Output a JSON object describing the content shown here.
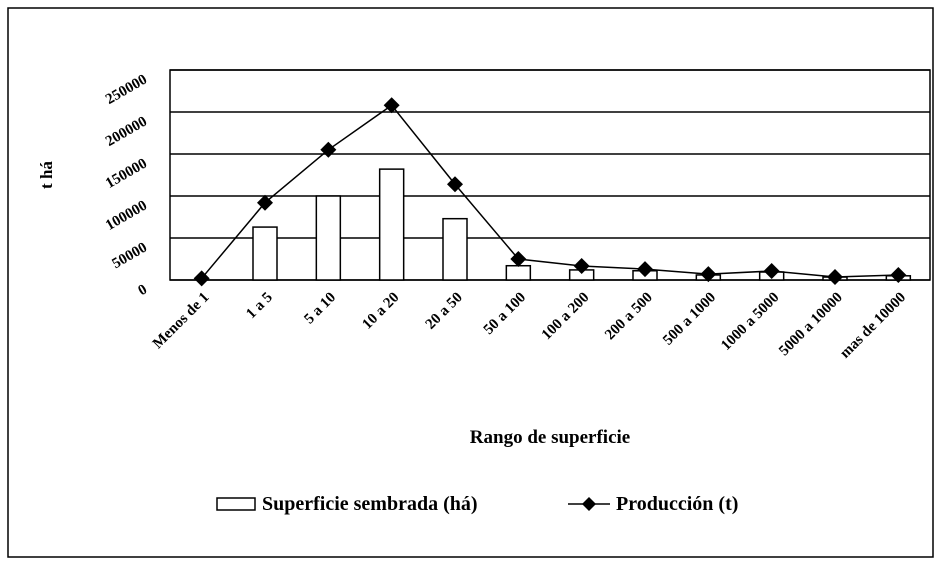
{
  "chart_data": {
    "type": "bar-line",
    "x_label": "Rango de superficie",
    "y_label": "t  há",
    "categories": [
      "Menos de 1",
      "1 a 5",
      "5 a 10",
      "10 a 20",
      "20 a 50",
      "50 a 100",
      "100 a 200",
      "200 a 500",
      "500 a 1000",
      "1000 a 5000",
      "5000 a 10000",
      "mas de 10000"
    ],
    "series": [
      {
        "name": "Superficie sembrada (há)",
        "type": "bar",
        "color": "#ffffff",
        "values": [
          0,
          63000,
          100000,
          132000,
          73000,
          17000,
          12000,
          11000,
          6000,
          9500,
          3500,
          5000
        ]
      },
      {
        "name": "Producción (t)",
        "type": "line",
        "color": "#000000",
        "values": [
          2000,
          92000,
          155000,
          208000,
          114000,
          25000,
          16700,
          13000,
          7000,
          10700,
          3600,
          6000
        ]
      }
    ],
    "ylim": [
      0,
      250000
    ],
    "yticks": [
      0,
      50000,
      100000,
      150000,
      200000,
      250000
    ],
    "grid": true,
    "legend": "bottom"
  }
}
